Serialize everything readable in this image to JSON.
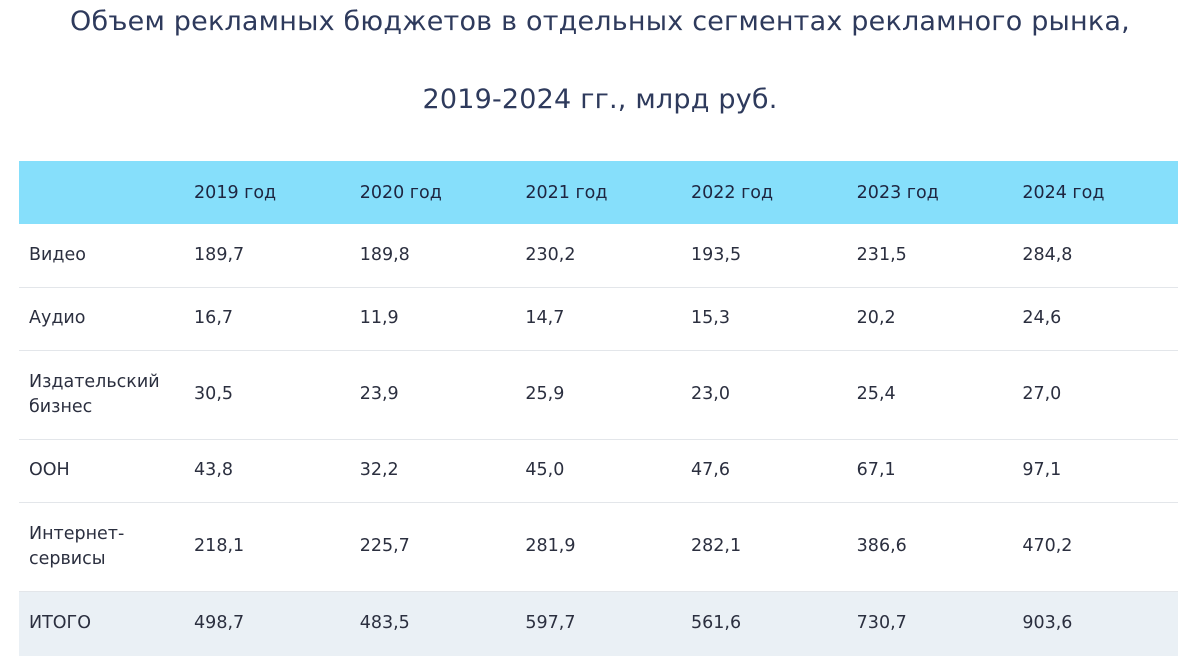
{
  "title": {
    "line1": "Объем рекламных бюджетов в отдельных сегментах рекламного рынка,",
    "line2": "2019-2024 гг., млрд руб."
  },
  "table": {
    "header": [
      "",
      "2019 год",
      "2020 год",
      "2021 год",
      "2022 год",
      "2023 год",
      "2024 год"
    ],
    "rows": [
      {
        "label": "Видео",
        "values": [
          "189,7",
          "189,8",
          "230,2",
          "193,5",
          "231,5",
          "284,8"
        ]
      },
      {
        "label": "Аудио",
        "values": [
          "16,7",
          "11,9",
          "14,7",
          "15,3",
          "20,2",
          "24,6"
        ]
      },
      {
        "label": "Издательский бизнес",
        "values": [
          "30,5",
          "23,9",
          "25,9",
          "23,0",
          "25,4",
          "27,0"
        ]
      },
      {
        "label": "ООН",
        "values": [
          "43,8",
          "32,2",
          "45,0",
          "47,6",
          "67,1",
          "97,1"
        ]
      },
      {
        "label": "Интернет-сервисы",
        "values": [
          "218,1",
          "225,7",
          "281,9",
          "282,1",
          "386,6",
          "470,2"
        ]
      },
      {
        "label": "ИТОГО",
        "values": [
          "498,7",
          "483,5",
          "597,7",
          "561,6",
          "730,7",
          "903,6"
        ]
      }
    ]
  },
  "colors": {
    "header_bg": "#86dffb",
    "total_row_bg": "#eaf0f5",
    "title_text": "#2e3a5c"
  }
}
